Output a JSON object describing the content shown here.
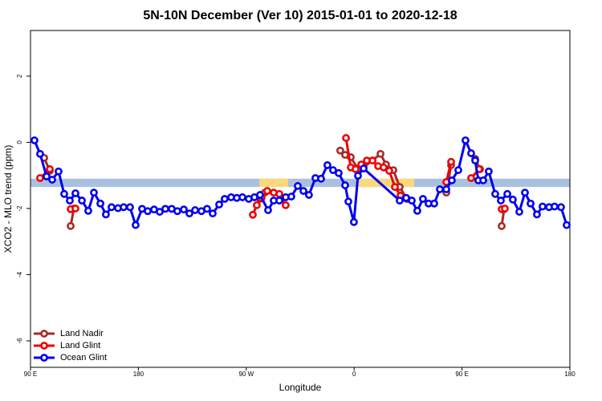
{
  "chart_data": {
    "type": "line",
    "title": "5N-10N December (Ver 10)   2015-01-01 to 2020-12-18",
    "xlabel": "Longitude",
    "ylabel": "XCO2 - MLO trend (ppm)",
    "xlim": [
      90,
      540
    ],
    "xticks": [
      {
        "value": 90,
        "label": "90 E"
      },
      {
        "value": 180,
        "label": "180"
      },
      {
        "value": 270,
        "label": "90 W"
      },
      {
        "value": 360,
        "label": "0"
      },
      {
        "value": 450,
        "label": "90 E"
      },
      {
        "value": 540,
        "label": "180"
      }
    ],
    "ylim": [
      -6.8,
      3.38
    ],
    "yticks": [
      -6,
      -4,
      -2,
      0,
      2
    ],
    "legend": "bottomleft",
    "band": {
      "ylim": [
        -1.35,
        -1.1
      ],
      "color": "#a9c1df"
    },
    "highlight": {
      "color": "#fbd97a",
      "spans": [
        [
          281,
          305
        ],
        [
          363,
          410
        ]
      ]
    },
    "series": [
      {
        "name": "Land Nadir",
        "color": "#a52a2a",
        "x": [
          101.4,
          106.1,
          null,
          123.5,
          126.2,
          null,
          281.5,
          285.5,
          null,
          348.4,
          352.5,
          357.2,
          363.2,
          367.9,
          382.0,
          386.6,
          392.7,
          398.0,
          404.0,
          null,
          436.9,
          440.9,
          null,
          461.0,
          465.0,
          null,
          483.1,
          485.1
        ],
        "values": [
          -0.47,
          -0.86,
          null,
          -2.53,
          -2.0,
          null,
          -1.71,
          -1.52,
          null,
          -0.25,
          -0.38,
          -0.45,
          -0.81,
          -0.76,
          -0.35,
          -0.67,
          -0.84,
          -1.35,
          -1.71,
          null,
          -1.52,
          -0.69,
          null,
          -0.5,
          -0.81,
          null,
          -2.53,
          -2.02
        ]
      },
      {
        "name": "Land Glint",
        "color": "#ee0000",
        "x": [
          98.0,
          106.1,
          null,
          123.5,
          127.5,
          null,
          275.5,
          278.8,
          282.8,
          287.5,
          292.9,
          297.6,
          302.9,
          null,
          353.2,
          357.2,
          361.2,
          365.9,
          370.6,
          375.3,
          380.0,
          384.6,
          389.3,
          394.0,
          398.7,
          404.0,
          null,
          436.9,
          440.9,
          null,
          457.6,
          464.3,
          null,
          483.1,
          485.7
        ],
        "values": [
          -1.08,
          -0.81,
          null,
          -2.02,
          -2.0,
          null,
          -2.19,
          -1.9,
          -1.68,
          -1.47,
          -1.52,
          -1.56,
          -1.9,
          null,
          0.13,
          -0.76,
          -0.81,
          -0.67,
          -0.55,
          -0.55,
          -0.72,
          -0.76,
          -0.86,
          -1.35,
          -1.61,
          -1.71,
          null,
          -1.2,
          -0.59,
          null,
          -1.08,
          -0.81,
          null,
          -2.02,
          -2.0
        ]
      },
      {
        "name": "Ocean Glint",
        "color": "#0000ee",
        "x": [
          93.3,
          98.0,
          103.4,
          108.1,
          113.4,
          118.1,
          122.8,
          127.5,
          132.9,
          138.2,
          142.9,
          148.3,
          152.9,
          157.6,
          163.0,
          167.7,
          173.0,
          177.7,
          183.1,
          187.8,
          193.1,
          197.8,
          202.5,
          207.8,
          212.5,
          217.9,
          222.6,
          227.3,
          232.6,
          237.3,
          242.0,
          247.4,
          252.0,
          257.4,
          262.1,
          266.8,
          272.1,
          276.8,
          281.5,
          288.2,
          292.9,
          297.6,
          302.9,
          307.6,
          313.0,
          317.7,
          322.3,
          327.7,
          332.4,
          337.7,
          342.4,
          347.1,
          352.5,
          355.2,
          359.8,
          363.2,
          367.9,
          398.0,
          403.4,
          408.1,
          412.7,
          417.4,
          422.1,
          426.8,
          431.5,
          436.9,
          441.5,
          446.9,
          452.9,
          457.6,
          461.0,
          463.6,
          467.7,
          472.3,
          477.7,
          482.4,
          487.8,
          492.4,
          497.8,
          502.5,
          507.2,
          512.5,
          517.2,
          522.6,
          527.2,
          532.6,
          537.3
        ],
        "values": [
          0.06,
          -0.35,
          -1.03,
          -1.13,
          -0.88,
          -1.56,
          -1.76,
          -1.54,
          -1.76,
          -2.07,
          -1.52,
          -1.85,
          -2.18,
          -1.96,
          -1.99,
          -1.96,
          -1.96,
          -2.5,
          -2.01,
          -2.08,
          -2.03,
          -2.1,
          -2.01,
          -2.01,
          -2.08,
          -2.03,
          -2.15,
          -2.05,
          -2.08,
          -2.01,
          -2.15,
          -1.88,
          -1.71,
          -1.66,
          -1.68,
          -1.66,
          -1.71,
          -1.66,
          -1.59,
          -2.05,
          -1.76,
          -1.76,
          -1.66,
          -1.64,
          -1.32,
          -1.47,
          -1.59,
          -1.08,
          -1.1,
          -0.69,
          -0.84,
          -0.93,
          -1.3,
          -1.79,
          -2.41,
          -1.01,
          -0.79,
          -1.76,
          -1.68,
          -1.76,
          -2.07,
          -1.71,
          -1.85,
          -1.85,
          -1.42,
          -1.42,
          -1.15,
          -0.84,
          0.06,
          -0.33,
          -0.55,
          -1.15,
          -1.15,
          -0.88,
          -1.56,
          -1.76,
          -1.56,
          -1.73,
          -2.1,
          -1.52,
          -1.85,
          -2.18,
          -1.94,
          -1.96,
          -1.94,
          -1.96,
          -2.5
        ]
      }
    ]
  }
}
